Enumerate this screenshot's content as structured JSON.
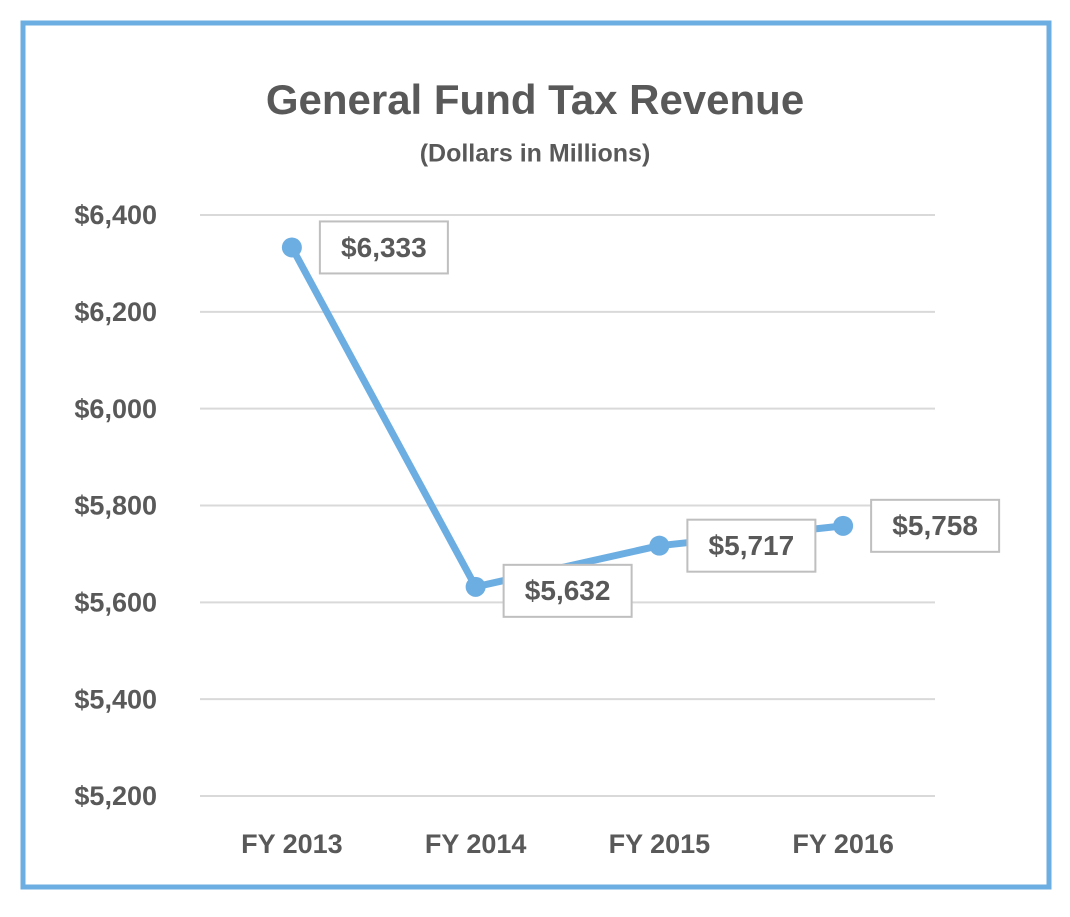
{
  "chart_data": {
    "type": "line",
    "title": "General Fund Tax Revenue",
    "subtitle": "(Dollars in Millions)",
    "categories": [
      "FY 2013",
      "FY 2014",
      "FY 2015",
      "FY 2016"
    ],
    "values": [
      6333,
      5632,
      5717,
      5758
    ],
    "value_labels": [
      "$6,333",
      "$5,632",
      "$5,717",
      "$5,758"
    ],
    "color": "#6daee2",
    "ylim": [
      5200,
      6400
    ],
    "yticks": [
      {
        "value": 5200,
        "label": "$5,200"
      },
      {
        "value": 5400,
        "label": "$5,400"
      },
      {
        "value": 5600,
        "label": "$5,600"
      },
      {
        "value": 5800,
        "label": "$5,800"
      },
      {
        "value": 6000,
        "label": "$6,000"
      },
      {
        "value": 6200,
        "label": "$6,200"
      },
      {
        "value": 6400,
        "label": "$6,400"
      }
    ],
    "grid": true
  }
}
